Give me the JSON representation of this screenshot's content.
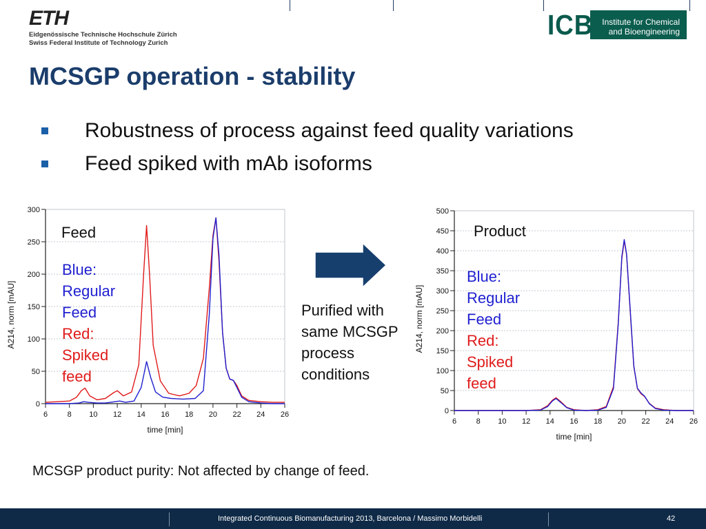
{
  "header": {
    "eth_logo": {
      "mark": "ETH",
      "line1": "Eidgenössische Technische Hochschule Zürich",
      "line2": "Swiss Federal Institute of Technology Zurich"
    },
    "icb_logo": {
      "letters": "ICB",
      "line1": "Institute for Chemical",
      "line2": "and Bioengineering"
    }
  },
  "slide": {
    "title": "MCSGP operation - stability",
    "bullets": [
      "Robustness of process against feed quality variations",
      "Feed spiked with mAb isoforms"
    ],
    "arrow_color": "#163f6e",
    "purified_lines": [
      "Purified with",
      "same MCSGP",
      "process",
      "conditions"
    ],
    "conclusion": "MCSGP product purity: Not affected by change of feed."
  },
  "feed_panel": {
    "label": "Feed",
    "legend": {
      "blue_lines": [
        "Blue:",
        "Regular",
        "Feed"
      ],
      "red_lines": [
        "Red:",
        "Spiked",
        "feed"
      ]
    }
  },
  "product_panel": {
    "label": "Product",
    "legend": {
      "blue_lines": [
        "Blue:",
        "Regular",
        "Feed"
      ],
      "red_lines": [
        "Red:",
        "Spiked",
        "feed"
      ]
    }
  },
  "chart_data": [
    {
      "type": "line",
      "title": "",
      "xlabel": "time [min]",
      "ylabel": "A214, norm [mAU]",
      "xlim": [
        6,
        26
      ],
      "ylim": [
        0,
        300
      ],
      "xticks": [
        6,
        8,
        10,
        12,
        14,
        16,
        18,
        20,
        22,
        24,
        26
      ],
      "yticks": [
        0,
        50,
        100,
        150,
        200,
        250,
        300
      ],
      "grid": true,
      "series": [
        {
          "color": "#e01a1a",
          "x": [
            6,
            7,
            8,
            8.6,
            9.0,
            9.3,
            9.7,
            10.3,
            11.0,
            11.7,
            12.0,
            12.5,
            13.2,
            13.8,
            14.2,
            14.45,
            14.7,
            15.0,
            15.6,
            16.3,
            17.2,
            18.0,
            18.6,
            19.2,
            19.7,
            20.0,
            20.25,
            20.5,
            20.8,
            21.1,
            21.4,
            21.7,
            22.0,
            22.4,
            23.0,
            24.0,
            25.0,
            26.0
          ],
          "y": [
            2,
            3,
            4,
            10,
            20,
            24,
            12,
            6,
            8,
            17,
            20,
            12,
            18,
            60,
            200,
            275,
            200,
            90,
            35,
            16,
            12,
            16,
            28,
            70,
            180,
            260,
            287,
            220,
            110,
            55,
            38,
            36,
            28,
            12,
            5,
            3,
            2,
            2
          ]
        },
        {
          "color": "#1f1fd0",
          "x": [
            6,
            7,
            8,
            8.8,
            9.2,
            9.6,
            10.3,
            11.0,
            11.8,
            12.2,
            12.7,
            13.4,
            14.0,
            14.45,
            14.8,
            15.2,
            15.8,
            16.5,
            17.5,
            18.5,
            19.2,
            19.7,
            20.0,
            20.25,
            20.5,
            20.8,
            21.1,
            21.4,
            21.7,
            22.0,
            22.4,
            23.0,
            24.0,
            25.0,
            26.0
          ],
          "y": [
            0,
            0,
            0,
            1,
            3,
            2,
            1,
            1,
            3,
            4,
            2,
            4,
            25,
            65,
            40,
            18,
            10,
            8,
            7,
            8,
            20,
            140,
            255,
            287,
            230,
            110,
            55,
            38,
            36,
            25,
            10,
            3,
            1,
            0,
            0
          ]
        }
      ]
    },
    {
      "type": "line",
      "title": "",
      "xlabel": "time [min]",
      "ylabel": "A214, norm [mAU]",
      "xlim": [
        6,
        26
      ],
      "ylim": [
        0,
        500
      ],
      "xticks": [
        6,
        8,
        10,
        12,
        14,
        16,
        18,
        20,
        22,
        24,
        26
      ],
      "yticks": [
        0,
        50,
        100,
        150,
        200,
        250,
        300,
        350,
        400,
        450,
        500
      ],
      "grid": true,
      "series": [
        {
          "color": "#e01a1a",
          "x": [
            6,
            8,
            10,
            12,
            13.2,
            13.8,
            14.2,
            14.5,
            14.9,
            15.4,
            16.0,
            17.0,
            18.0,
            18.7,
            19.3,
            19.7,
            20.0,
            20.2,
            20.4,
            20.7,
            21.0,
            21.3,
            21.6,
            21.9,
            22.3,
            22.8,
            23.5,
            24.5,
            26.0
          ],
          "y": [
            0,
            0,
            0,
            0,
            2,
            12,
            26,
            32,
            22,
            8,
            2,
            0,
            2,
            10,
            60,
            220,
            380,
            425,
            390,
            250,
            110,
            55,
            42,
            35,
            18,
            6,
            2,
            0,
            0
          ]
        },
        {
          "color": "#1f1fd0",
          "x": [
            6,
            8,
            10,
            12,
            13.2,
            13.8,
            14.2,
            14.5,
            14.9,
            15.4,
            16.0,
            17.0,
            18.0,
            18.7,
            19.3,
            19.7,
            20.0,
            20.2,
            20.4,
            20.7,
            21.0,
            21.3,
            21.6,
            21.9,
            22.3,
            22.8,
            23.5,
            24.5,
            26.0
          ],
          "y": [
            0,
            0,
            0,
            0,
            1,
            10,
            24,
            30,
            20,
            7,
            1,
            0,
            1,
            8,
            55,
            215,
            385,
            428,
            392,
            255,
            112,
            56,
            44,
            36,
            17,
            5,
            1,
            0,
            0
          ]
        }
      ]
    }
  ],
  "footer": {
    "text": "Integrated Continuous  Biomanufacturing  2013, Barcelona / Massimo Morbidelli",
    "page": "42"
  }
}
